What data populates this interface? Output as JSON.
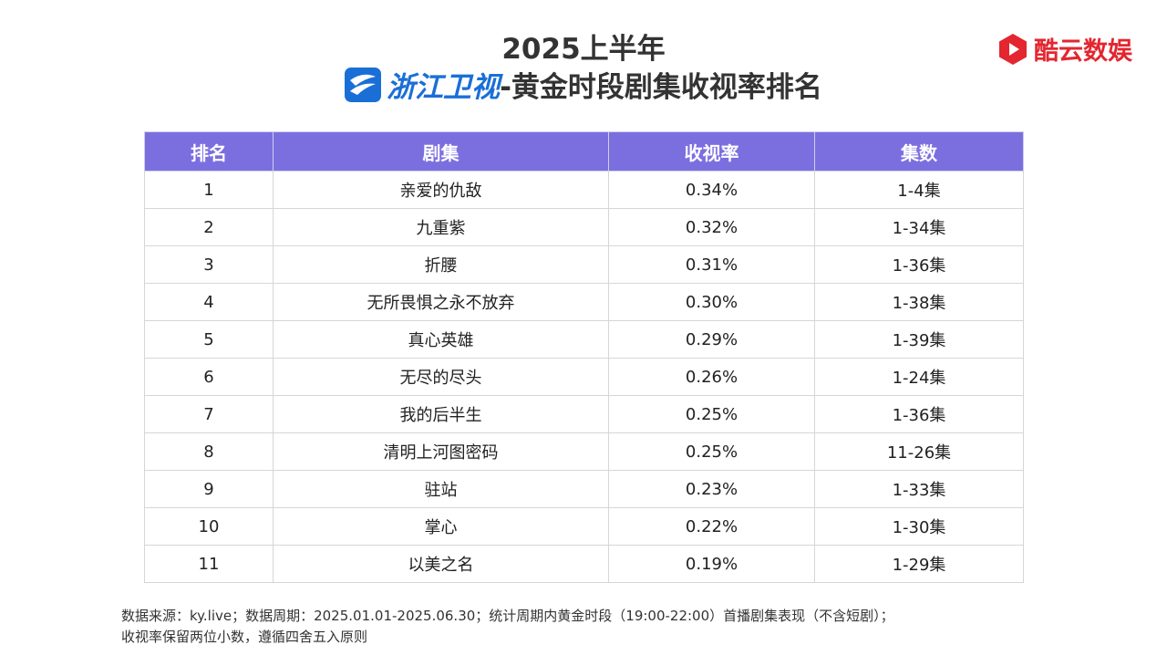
{
  "title": {
    "year": "2025上半年",
    "channel": "浙江卫视",
    "suffix": "-黄金时段剧集收视率排名"
  },
  "brand": {
    "name": "酷云数娱",
    "color": "#e3262f",
    "icon": "kuyun-logo-icon"
  },
  "table": {
    "headers": [
      "排名",
      "剧集",
      "收视率",
      "集数"
    ],
    "header_color": "#7b6fe0",
    "rows": [
      {
        "rank": "1",
        "drama": "亲爱的仇敌",
        "rating": "0.34%",
        "episodes": "1-4集"
      },
      {
        "rank": "2",
        "drama": "九重紫",
        "rating": "0.32%",
        "episodes": "1-34集"
      },
      {
        "rank": "3",
        "drama": "折腰",
        "rating": "0.31%",
        "episodes": "1-36集"
      },
      {
        "rank": "4",
        "drama": "无所畏惧之永不放弃",
        "rating": "0.30%",
        "episodes": "1-38集"
      },
      {
        "rank": "5",
        "drama": "真心英雄",
        "rating": "0.29%",
        "episodes": "1-39集"
      },
      {
        "rank": "6",
        "drama": "无尽的尽头",
        "rating": "0.26%",
        "episodes": "1-24集"
      },
      {
        "rank": "7",
        "drama": "我的后半生",
        "rating": "0.25%",
        "episodes": "1-36集"
      },
      {
        "rank": "8",
        "drama": "清明上河图密码",
        "rating": "0.25%",
        "episodes": "11-26集"
      },
      {
        "rank": "9",
        "drama": "驻站",
        "rating": "0.23%",
        "episodes": "1-33集"
      },
      {
        "rank": "10",
        "drama": "掌心",
        "rating": "0.22%",
        "episodes": "1-30集"
      },
      {
        "rank": "11",
        "drama": "以美之名",
        "rating": "0.19%",
        "episodes": "1-29集"
      }
    ]
  },
  "footnote": {
    "line1": "数据来源：ky.live；数据周期：2025.01.01-2025.06.30；统计周期内黄金时段（19:00-22:00）首播剧集表现（不含短剧）；",
    "line2": "收视率保留两位小数，遵循四舍五入原则"
  }
}
